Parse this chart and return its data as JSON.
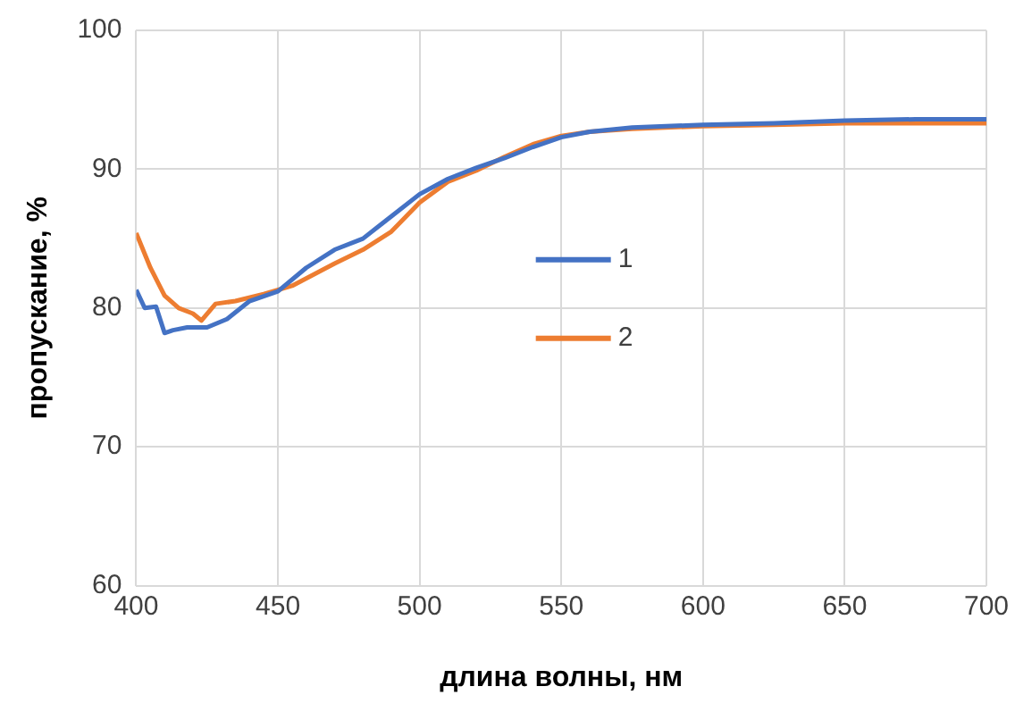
{
  "chart_data": {
    "type": "line",
    "xlabel": "длина волны, нм",
    "ylabel": "пропускание, %",
    "xlim": [
      400,
      700
    ],
    "xticks": [
      400,
      450,
      500,
      550,
      600,
      650,
      700
    ],
    "ylim": [
      60,
      100
    ],
    "yticks": [
      60,
      70,
      80,
      90,
      100
    ],
    "grid": true,
    "legend": "center",
    "marker": "none",
    "line_style": "solid",
    "series": [
      {
        "name": "1",
        "color": "#4472c4",
        "x": [
          400,
          403,
          407,
          410,
          413,
          418,
          425,
          432,
          440,
          450,
          460,
          470,
          480,
          490,
          500,
          510,
          520,
          530,
          540,
          550,
          560,
          575,
          600,
          625,
          650,
          675,
          700
        ],
        "values": [
          81.3,
          80,
          80.1,
          78.2,
          78.4,
          78.6,
          78.6,
          79.2,
          80.5,
          81.2,
          82.9,
          84.2,
          85,
          86.6,
          88.2,
          89.3,
          90.1,
          90.8,
          91.6,
          92.3,
          92.7,
          93,
          93.2,
          93.3,
          93.5,
          93.6,
          93.6
        ]
      },
      {
        "name": "2",
        "color": "#ed7d31",
        "x": [
          400,
          405,
          410,
          415,
          420,
          423,
          428,
          435,
          445,
          455,
          470,
          480,
          490,
          500,
          510,
          520,
          530,
          540,
          550,
          560,
          575,
          600,
          625,
          650,
          675,
          700
        ],
        "values": [
          85.4,
          82.9,
          80.9,
          80,
          79.6,
          79.1,
          80.3,
          80.5,
          81,
          81.6,
          83.2,
          84.2,
          85.5,
          87.6,
          89.1,
          89.9,
          90.9,
          91.8,
          92.4,
          92.7,
          92.9,
          93.1,
          93.2,
          93.3,
          93.3,
          93.3
        ]
      }
    ]
  }
}
